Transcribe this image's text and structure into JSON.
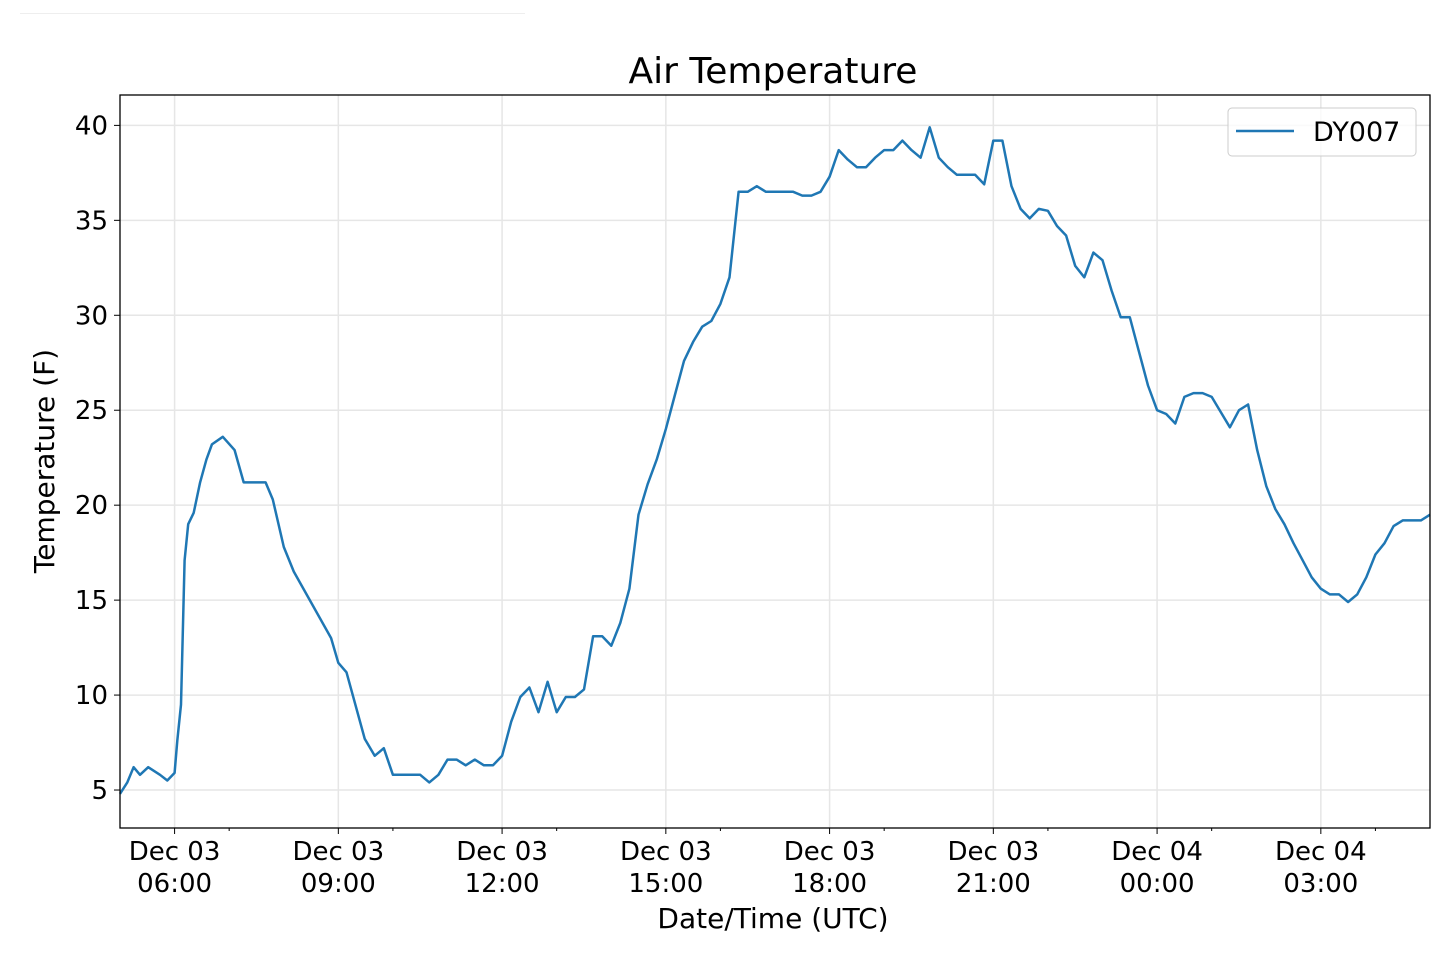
{
  "chart_data": {
    "type": "line",
    "title": "Air Temperature",
    "xlabel": "Date/Time (UTC)",
    "ylabel": "Temperature (F)",
    "xlim": [
      "Dec 03 05:00",
      "Dec 04 05:00"
    ],
    "ylim": [
      3.0,
      41.6
    ],
    "grid": true,
    "legend_position": "top-right",
    "x_ticks": [
      {
        "value": "Dec 03 06:00",
        "line1": "Dec 03",
        "line2": "06:00"
      },
      {
        "value": "Dec 03 09:00",
        "line1": "Dec 03",
        "line2": "09:00"
      },
      {
        "value": "Dec 03 12:00",
        "line1": "Dec 03",
        "line2": "12:00"
      },
      {
        "value": "Dec 03 15:00",
        "line1": "Dec 03",
        "line2": "15:00"
      },
      {
        "value": "Dec 03 18:00",
        "line1": "Dec 03",
        "line2": "18:00"
      },
      {
        "value": "Dec 03 21:00",
        "line1": "Dec 03",
        "line2": "21:00"
      },
      {
        "value": "Dec 04 00:00",
        "line1": "Dec 04",
        "line2": "00:00"
      },
      {
        "value": "Dec 04 03:00",
        "line1": "Dec 04",
        "line2": "03:00"
      }
    ],
    "y_ticks": [
      5,
      10,
      15,
      20,
      25,
      30,
      35,
      40
    ],
    "series": [
      {
        "name": "DY007",
        "color": "#1f77b4",
        "points": [
          [
            "Dec 03 05:00",
            4.8
          ],
          [
            "Dec 03 05:08",
            5.4
          ],
          [
            "Dec 03 05:15",
            6.2
          ],
          [
            "Dec 03 05:22",
            5.8
          ],
          [
            "Dec 03 05:31",
            6.2
          ],
          [
            "Dec 03 05:44",
            5.8
          ],
          [
            "Dec 03 05:52",
            5.5
          ],
          [
            "Dec 03 06:00",
            5.9
          ],
          [
            "Dec 03 06:03",
            7.6
          ],
          [
            "Dec 03 06:07",
            9.5
          ],
          [
            "Dec 03 06:11",
            17.1
          ],
          [
            "Dec 03 06:15",
            19.0
          ],
          [
            "Dec 03 06:21",
            19.6
          ],
          [
            "Dec 03 06:28",
            21.2
          ],
          [
            "Dec 03 06:35",
            22.4
          ],
          [
            "Dec 03 06:41",
            23.2
          ],
          [
            "Dec 03 06:53",
            23.6
          ],
          [
            "Dec 03 07:06",
            22.9
          ],
          [
            "Dec 03 07:16",
            21.2
          ],
          [
            "Dec 03 07:40",
            21.2
          ],
          [
            "Dec 03 07:48",
            20.3
          ],
          [
            "Dec 03 08:00",
            17.8
          ],
          [
            "Dec 03 08:11",
            16.5
          ],
          [
            "Dec 03 08:52",
            13.0
          ],
          [
            "Dec 03 09:00",
            11.7
          ],
          [
            "Dec 03 09:09",
            11.2
          ],
          [
            "Dec 03 09:29",
            7.7
          ],
          [
            "Dec 03 09:40",
            6.8
          ],
          [
            "Dec 03 09:50",
            7.2
          ],
          [
            "Dec 03 10:00",
            5.8
          ],
          [
            "Dec 03 10:10",
            5.8
          ],
          [
            "Dec 03 10:20",
            5.8
          ],
          [
            "Dec 03 10:30",
            5.8
          ],
          [
            "Dec 03 10:40",
            5.4
          ],
          [
            "Dec 03 10:50",
            5.8
          ],
          [
            "Dec 03 11:00",
            6.6
          ],
          [
            "Dec 03 11:10",
            6.6
          ],
          [
            "Dec 03 11:20",
            6.3
          ],
          [
            "Dec 03 11:30",
            6.6
          ],
          [
            "Dec 03 11:40",
            6.3
          ],
          [
            "Dec 03 11:50",
            6.3
          ],
          [
            "Dec 03 12:00",
            6.8
          ],
          [
            "Dec 03 12:10",
            8.6
          ],
          [
            "Dec 03 12:20",
            9.9
          ],
          [
            "Dec 03 12:30",
            10.4
          ],
          [
            "Dec 03 12:40",
            9.1
          ],
          [
            "Dec 03 12:50",
            10.7
          ],
          [
            "Dec 03 13:00",
            9.1
          ],
          [
            "Dec 03 13:10",
            9.9
          ],
          [
            "Dec 03 13:20",
            9.9
          ],
          [
            "Dec 03 13:30",
            10.3
          ],
          [
            "Dec 03 13:40",
            13.1
          ],
          [
            "Dec 03 13:50",
            13.1
          ],
          [
            "Dec 03 14:00",
            12.6
          ],
          [
            "Dec 03 14:10",
            13.8
          ],
          [
            "Dec 03 14:20",
            15.6
          ],
          [
            "Dec 03 14:30",
            19.5
          ],
          [
            "Dec 03 14:40",
            21.1
          ],
          [
            "Dec 03 14:50",
            22.4
          ],
          [
            "Dec 03 15:00",
            24.0
          ],
          [
            "Dec 03 15:10",
            25.8
          ],
          [
            "Dec 03 15:20",
            27.6
          ],
          [
            "Dec 03 15:30",
            28.6
          ],
          [
            "Dec 03 15:40",
            29.4
          ],
          [
            "Dec 03 15:50",
            29.7
          ],
          [
            "Dec 03 16:00",
            30.6
          ],
          [
            "Dec 03 16:10",
            32.0
          ],
          [
            "Dec 03 16:20",
            36.5
          ],
          [
            "Dec 03 16:30",
            36.5
          ],
          [
            "Dec 03 16:40",
            36.8
          ],
          [
            "Dec 03 16:50",
            36.5
          ],
          [
            "Dec 03 17:00",
            36.5
          ],
          [
            "Dec 03 17:10",
            36.5
          ],
          [
            "Dec 03 17:20",
            36.5
          ],
          [
            "Dec 03 17:30",
            36.3
          ],
          [
            "Dec 03 17:40",
            36.3
          ],
          [
            "Dec 03 17:50",
            36.5
          ],
          [
            "Dec 03 18:00",
            37.3
          ],
          [
            "Dec 03 18:10",
            38.7
          ],
          [
            "Dec 03 18:20",
            38.2
          ],
          [
            "Dec 03 18:30",
            37.8
          ],
          [
            "Dec 03 18:40",
            37.8
          ],
          [
            "Dec 03 18:50",
            38.3
          ],
          [
            "Dec 03 19:00",
            38.7
          ],
          [
            "Dec 03 19:10",
            38.7
          ],
          [
            "Dec 03 19:20",
            39.2
          ],
          [
            "Dec 03 19:30",
            38.7
          ],
          [
            "Dec 03 19:40",
            38.3
          ],
          [
            "Dec 03 19:50",
            39.9
          ],
          [
            "Dec 03 20:00",
            38.3
          ],
          [
            "Dec 03 20:10",
            37.8
          ],
          [
            "Dec 03 20:20",
            37.4
          ],
          [
            "Dec 03 20:30",
            37.4
          ],
          [
            "Dec 03 20:40",
            37.4
          ],
          [
            "Dec 03 20:50",
            36.9
          ],
          [
            "Dec 03 21:00",
            39.2
          ],
          [
            "Dec 03 21:10",
            39.2
          ],
          [
            "Dec 03 21:20",
            36.8
          ],
          [
            "Dec 03 21:30",
            35.6
          ],
          [
            "Dec 03 21:40",
            35.1
          ],
          [
            "Dec 03 21:50",
            35.6
          ],
          [
            "Dec 03 22:00",
            35.5
          ],
          [
            "Dec 03 22:10",
            34.7
          ],
          [
            "Dec 03 22:20",
            34.2
          ],
          [
            "Dec 03 22:30",
            32.6
          ],
          [
            "Dec 03 22:40",
            32.0
          ],
          [
            "Dec 03 22:50",
            33.3
          ],
          [
            "Dec 03 23:00",
            32.9
          ],
          [
            "Dec 03 23:10",
            31.3
          ],
          [
            "Dec 03 23:20",
            29.9
          ],
          [
            "Dec 03 23:30",
            29.9
          ],
          [
            "Dec 03 23:40",
            28.1
          ],
          [
            "Dec 03 23:50",
            26.3
          ],
          [
            "Dec 04 00:00",
            25.0
          ],
          [
            "Dec 04 00:10",
            24.8
          ],
          [
            "Dec 04 00:20",
            24.3
          ],
          [
            "Dec 04 00:30",
            25.7
          ],
          [
            "Dec 04 00:40",
            25.9
          ],
          [
            "Dec 04 00:50",
            25.9
          ],
          [
            "Dec 04 01:00",
            25.7
          ],
          [
            "Dec 04 01:10",
            24.9
          ],
          [
            "Dec 04 01:20",
            24.1
          ],
          [
            "Dec 04 01:30",
            25.0
          ],
          [
            "Dec 04 01:40",
            25.3
          ],
          [
            "Dec 04 01:50",
            22.9
          ],
          [
            "Dec 04 02:00",
            21.0
          ],
          [
            "Dec 04 02:10",
            19.8
          ],
          [
            "Dec 04 02:20",
            19.0
          ],
          [
            "Dec 04 02:30",
            18.0
          ],
          [
            "Dec 04 02:40",
            17.1
          ],
          [
            "Dec 04 02:50",
            16.2
          ],
          [
            "Dec 04 03:00",
            15.6
          ],
          [
            "Dec 04 03:10",
            15.3
          ],
          [
            "Dec 04 03:20",
            15.3
          ],
          [
            "Dec 04 03:30",
            14.9
          ],
          [
            "Dec 04 03:40",
            15.3
          ],
          [
            "Dec 04 03:50",
            16.2
          ],
          [
            "Dec 04 04:00",
            17.4
          ],
          [
            "Dec 04 04:10",
            18.0
          ],
          [
            "Dec 04 04:20",
            18.9
          ],
          [
            "Dec 04 04:30",
            19.2
          ],
          [
            "Dec 04 04:40",
            19.2
          ],
          [
            "Dec 04 04:50",
            19.2
          ],
          [
            "Dec 04 05:00",
            19.5
          ]
        ]
      }
    ]
  }
}
